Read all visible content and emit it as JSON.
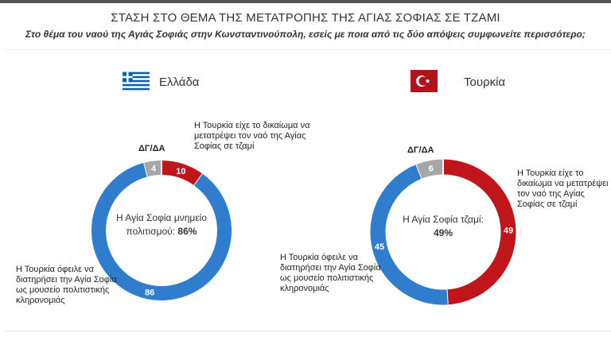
{
  "title": "ΣΤΑΣΗ ΣΤΟ ΘΕΜΑ ΤΗΣ ΜΕΤΑΤΡΟΠΗΣ ΤΗΣ ΑΓΙΑΣ ΣΟΦΙΑΣ ΣΕ ΤΖΑΜΙ",
  "subtitle": "Στο θέμα του ναού της Αγιάς Σοφιάς στην Κωνσταντινούπολη, εσείς με ποια από τις δύο απόψεις συμφωνείτε περισσότερο;",
  "chart_data": [
    {
      "type": "pie",
      "country": "Ελλάδα",
      "flag_icon": "greece-flag-icon",
      "center_label": "Η Αγία Σοφία μνημείο πολιτισμού:",
      "center_value": "86%",
      "slices": [
        {
          "label": "Η Τουρκία είχε το δικαίωμα να μετατρέψει τον ναό της Αγίας Σοφίας σε τζαμί",
          "value": 10,
          "color": "#c0161b"
        },
        {
          "label": "Η Τουρκία όφειλε να διατηρήσει την Αγία Σοφία ως μουσείο πολιτιστικής κληρονομιάς",
          "value": 86,
          "color": "#2f7dcc"
        },
        {
          "label": "ΔΓ/ΔΑ",
          "value": 4,
          "color": "#a6a6a6"
        }
      ]
    },
    {
      "type": "pie",
      "country": "Τουρκία",
      "flag_icon": "turkey-flag-icon",
      "center_label": "Η Αγία Σοφία τζαμί:",
      "center_value": "49%",
      "slices": [
        {
          "label": "Η Τουρκία είχε το δικαίωμα να μετατρέψει τον ναό της Αγίας Σοφίας σε τζαμί",
          "value": 49,
          "color": "#c0161b"
        },
        {
          "label": "Η Τουρκία όφειλε να διατηρήσει την Αγία Σοφία ως μουσείο πολιτιστικής κληρονομιάς",
          "value": 45,
          "color": "#2f7dcc"
        },
        {
          "label": "ΔΓ/ΔΑ",
          "value": 6,
          "color": "#a6a6a6"
        }
      ]
    }
  ]
}
